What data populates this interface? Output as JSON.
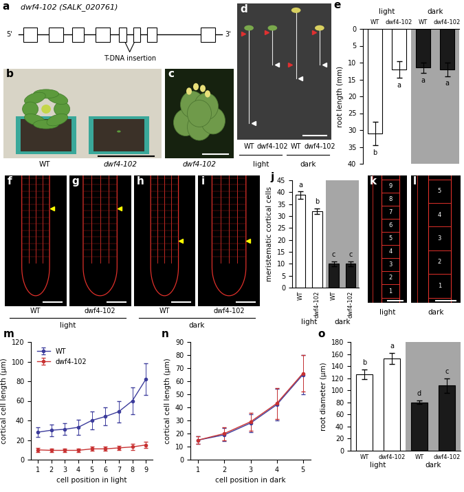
{
  "panels": {
    "a": {
      "panel": "a",
      "title": "dwf4-102 (SALK_020761)",
      "five_prime": "5'",
      "three_prime": "3'",
      "annotation": "T-DNA insertion"
    },
    "b": {
      "panel": "b",
      "labels": [
        "WT",
        "dwf4-102"
      ]
    },
    "c": {
      "panel": "c",
      "label": "dwf4-102"
    },
    "d": {
      "panel": "d",
      "labels": [
        "WT",
        "dwf4-102",
        "WT",
        "dwf4-102"
      ],
      "groups": [
        "light",
        "light",
        "dark",
        "dark"
      ]
    },
    "roots": {
      "panels": [
        "f",
        "g",
        "h",
        "i"
      ],
      "labels": [
        "WT",
        "dwf4-102",
        "WT",
        "dwf4-102"
      ],
      "groups": [
        "light",
        "light",
        "dark",
        "dark"
      ]
    },
    "k": {
      "panel": "k",
      "cells": [
        1,
        2,
        3,
        4,
        5,
        6,
        7,
        8,
        9
      ],
      "label": "light"
    },
    "l": {
      "panel": "l",
      "cells": [
        1,
        2,
        3,
        4,
        5
      ],
      "label": "dark"
    }
  },
  "chart_data": [
    {
      "panel": "e",
      "type": "bar",
      "categories": [
        "WT",
        "dwf4-102",
        "WT",
        "dwf4-102"
      ],
      "groups": [
        "light",
        "light",
        "dark",
        "dark"
      ],
      "values": [
        31,
        12,
        11.5,
        12
      ],
      "errors": [
        3.5,
        2.5,
        1.5,
        2
      ],
      "letters": [
        "b",
        "a",
        "a",
        "a"
      ],
      "colors": [
        "#ffffff",
        "#ffffff",
        "#1a1a1a",
        "#1a1a1a"
      ],
      "ylabel": "root length (mm)",
      "ylim": [
        40,
        0
      ],
      "yticks": [
        0,
        5,
        10,
        15,
        20,
        25,
        30,
        35,
        40
      ]
    },
    {
      "panel": "j",
      "type": "bar",
      "categories": [
        "WT",
        "dwf4-102",
        "WT",
        "dwf4-102"
      ],
      "groups": [
        "light",
        "light",
        "dark",
        "dark"
      ],
      "values": [
        38.8,
        32,
        10,
        10
      ],
      "errors": [
        1.5,
        1.2,
        1,
        1
      ],
      "letters": [
        "a",
        "b",
        "c",
        "c"
      ],
      "colors": [
        "#ffffff",
        "#ffffff",
        "#1a1a1a",
        "#1a1a1a"
      ],
      "ylabel": "meristematic cortical cells",
      "ylim": [
        0,
        45
      ],
      "yticks": [
        0,
        5,
        10,
        15,
        20,
        25,
        30,
        35,
        40,
        45
      ]
    },
    {
      "panel": "m",
      "type": "line",
      "xlabel": "cell position in light",
      "ylabel": "cortical cell length (μm)",
      "x": [
        1,
        2,
        3,
        4,
        5,
        6,
        7,
        8,
        9
      ],
      "xlim": [
        0.5,
        9.5
      ],
      "xticks": [
        1,
        2,
        3,
        4,
        5,
        6,
        7,
        8,
        9
      ],
      "ylim": [
        0,
        120
      ],
      "yticks": [
        0,
        20,
        40,
        60,
        80,
        100,
        120
      ],
      "legend": "upper left",
      "series": [
        {
          "name": "WT",
          "color": "#3c3c9c",
          "marker": "o",
          "line_style": "solid",
          "values": [
            28,
            30,
            31,
            33,
            40,
            44,
            49,
            60,
            82
          ],
          "errors": [
            5,
            6,
            6,
            8,
            9,
            9,
            11,
            14,
            16
          ]
        },
        {
          "name": "dwf4-102",
          "color": "#c83232",
          "marker": "o",
          "line_style": "solid",
          "values": [
            10,
            9.5,
            9.5,
            9.5,
            11,
            11,
            12,
            13,
            15
          ],
          "errors": [
            2,
            2,
            2,
            2,
            2,
            2,
            2,
            3,
            3
          ]
        }
      ]
    },
    {
      "panel": "n",
      "type": "line",
      "xlabel": "cell position in dark",
      "ylabel": "cortical cell length (μm)",
      "x": [
        1,
        2,
        3,
        4,
        5
      ],
      "xlim": [
        0.7,
        5.3
      ],
      "xticks": [
        1,
        2,
        3,
        4,
        5
      ],
      "ylim": [
        0,
        90
      ],
      "yticks": [
        0,
        10,
        20,
        30,
        40,
        50,
        60,
        70,
        80,
        90
      ],
      "series": [
        {
          "color": "#3c3c9c",
          "marker": "o",
          "line_style": "solid",
          "values": [
            15,
            19,
            28,
            42,
            65
          ],
          "errors": [
            3,
            5,
            7,
            12,
            15
          ]
        },
        {
          "color": "#c83232",
          "marker": "o",
          "line_style": "solid",
          "values": [
            15,
            20,
            29,
            43,
            66
          ],
          "errors": [
            3,
            5,
            7,
            12,
            14
          ]
        }
      ]
    },
    {
      "panel": "o",
      "type": "bar",
      "categories": [
        "WT",
        "dwf4-102",
        "WT",
        "dwf4-102"
      ],
      "groups": [
        "light",
        "light",
        "dark",
        "dark"
      ],
      "values": [
        127,
        153,
        80,
        108
      ],
      "errors": [
        8,
        9,
        3,
        12
      ],
      "letters": [
        "b",
        "a",
        "d",
        "c"
      ],
      "colors": [
        "#ffffff",
        "#ffffff",
        "#1a1a1a",
        "#1a1a1a"
      ],
      "ylabel": "root diameter (μm)",
      "ylim": [
        0,
        180
      ],
      "yticks": [
        0,
        20,
        40,
        60,
        80,
        100,
        120,
        140,
        160,
        180
      ]
    }
  ]
}
